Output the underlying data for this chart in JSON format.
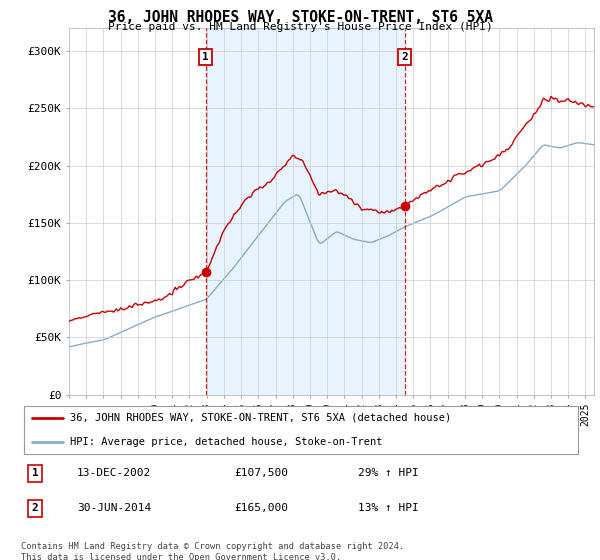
{
  "title": "36, JOHN RHODES WAY, STOKE-ON-TRENT, ST6 5XA",
  "subtitle": "Price paid vs. HM Land Registry's House Price Index (HPI)",
  "ylabel_ticks": [
    "£0",
    "£50K",
    "£100K",
    "£150K",
    "£200K",
    "£250K",
    "£300K"
  ],
  "ytick_values": [
    0,
    50000,
    100000,
    150000,
    200000,
    250000,
    300000
  ],
  "ylim": [
    0,
    320000
  ],
  "xlim_start": 1995.0,
  "xlim_end": 2025.5,
  "purchase1_x": 2002.95,
  "purchase1_y": 107500,
  "purchase1_label": "1",
  "purchase1_date": "13-DEC-2002",
  "purchase1_price": "£107,500",
  "purchase1_hpi": "29% ↑ HPI",
  "purchase2_x": 2014.5,
  "purchase2_y": 165000,
  "purchase2_label": "2",
  "purchase2_date": "30-JUN-2014",
  "purchase2_price": "£165,000",
  "purchase2_hpi": "13% ↑ HPI",
  "line_color_property": "#cc0000",
  "line_color_hpi": "#88aacc",
  "shade_color": "#ddeeff",
  "vline_color": "#cc0000",
  "legend_label_property": "36, JOHN RHODES WAY, STOKE-ON-TRENT, ST6 5XA (detached house)",
  "legend_label_hpi": "HPI: Average price, detached house, Stoke-on-Trent",
  "footer1": "Contains HM Land Registry data © Crown copyright and database right 2024.",
  "footer2": "This data is licensed under the Open Government Licence v3.0.",
  "background_color": "#ffffff",
  "plot_bg_color": "#ffffff",
  "grid_color": "#cccccc"
}
